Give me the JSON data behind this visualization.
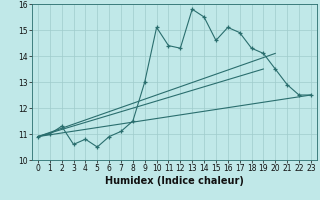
{
  "xlabel": "Humidex (Indice chaleur)",
  "bg_color": "#c0e8e8",
  "line_color": "#2a6e6e",
  "grid_color": "#a0cccc",
  "xlim": [
    -0.5,
    23.5
  ],
  "ylim": [
    10,
    16
  ],
  "xticks": [
    0,
    1,
    2,
    3,
    4,
    5,
    6,
    7,
    8,
    9,
    10,
    11,
    12,
    13,
    14,
    15,
    16,
    17,
    18,
    19,
    20,
    21,
    22,
    23
  ],
  "yticks": [
    10,
    11,
    12,
    13,
    14,
    15,
    16
  ],
  "main_line_x": [
    0,
    1,
    2,
    3,
    4,
    5,
    6,
    7,
    8,
    9,
    10,
    11,
    12,
    13,
    14,
    15,
    16,
    17,
    18,
    19,
    20,
    21,
    22,
    23
  ],
  "main_line_y": [
    10.9,
    11.0,
    11.3,
    10.6,
    10.8,
    10.5,
    10.9,
    11.1,
    11.5,
    13.0,
    15.1,
    14.4,
    14.3,
    15.8,
    15.5,
    14.6,
    15.1,
    14.9,
    14.3,
    14.1,
    13.5,
    12.9,
    12.5,
    12.5
  ],
  "line2_x": [
    0,
    23
  ],
  "line2_y": [
    10.9,
    12.5
  ],
  "line3_x": [
    0,
    20
  ],
  "line3_y": [
    10.9,
    14.1
  ],
  "line4_x": [
    0,
    19
  ],
  "line4_y": [
    10.9,
    13.5
  ],
  "tick_fontsize": 5.5,
  "xlabel_fontsize": 7
}
